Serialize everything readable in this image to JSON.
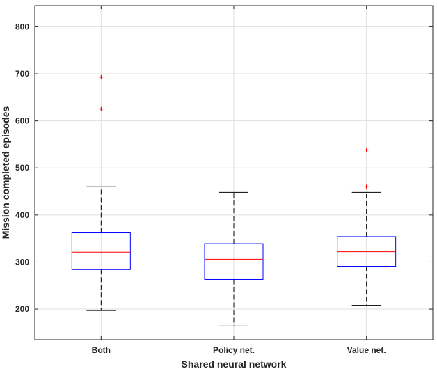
{
  "chart_data": {
    "type": "box",
    "title": "",
    "xlabel": "Shared neural network",
    "ylabel": "Mission completed episodes",
    "categories": [
      "Both",
      "Policy net.",
      "Value net."
    ],
    "ylim": [
      135,
      845
    ],
    "yticks": [
      200,
      300,
      400,
      500,
      600,
      700,
      800
    ],
    "grid": true,
    "boxes": [
      {
        "category": "Both",
        "whisker_low": 197,
        "q1": 284,
        "median": 321,
        "q3": 362,
        "whisker_high": 460,
        "outliers": [
          625,
          693
        ]
      },
      {
        "category": "Policy net.",
        "whisker_low": 164,
        "q1": 263,
        "median": 306,
        "q3": 339,
        "whisker_high": 448,
        "outliers": []
      },
      {
        "category": "Value net.",
        "whisker_low": 208,
        "q1": 291,
        "median": 322,
        "q3": 354,
        "whisker_high": 448,
        "outliers": [
          460,
          538
        ]
      }
    ],
    "colors": {
      "box": "#0000ff",
      "median": "#ff0000",
      "whisker": "#000000",
      "outlier": "#ff0000",
      "grid": "#dfdfdf",
      "axis": "#262626"
    }
  }
}
